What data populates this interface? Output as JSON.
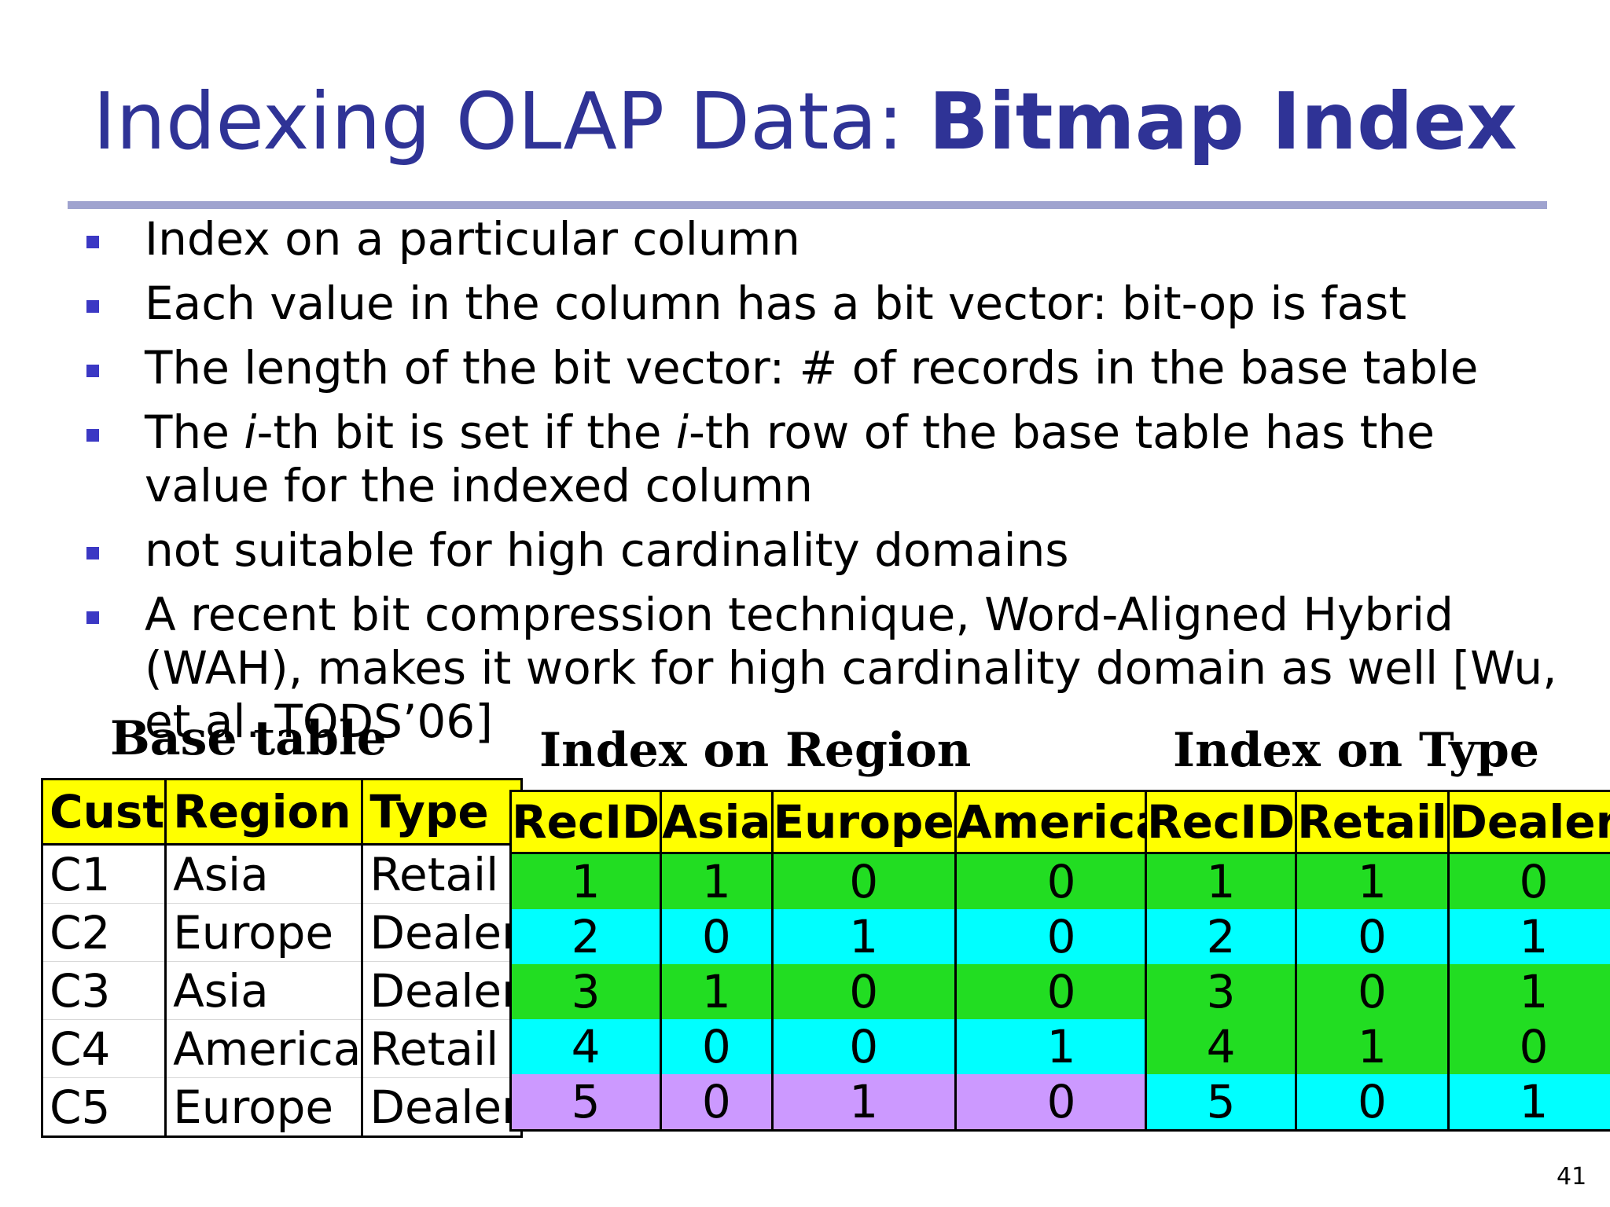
{
  "title": {
    "normal": "Indexing OLAP Data: ",
    "bold": "Bitmap Index"
  },
  "bullets": [
    {
      "text": "Index on a particular column"
    },
    {
      "text": "Each value in the column has a bit vector: bit-op is fast"
    },
    {
      "text": "The length of the bit vector: # of records in the base table"
    },
    {
      "a": "The ",
      "i1": "i",
      "b": "-th bit is set if the ",
      "i2": "i",
      "c": "-th row of the base table has the value for the indexed column"
    },
    {
      "text": "not suitable for high cardinality domains"
    },
    {
      "text": "A recent bit compression technique, Word-Aligned Hybrid (WAH), makes it work for high cardinality domain as well [Wu, et al. TODS’06]"
    }
  ],
  "base_table": {
    "caption": "Base table",
    "headers": [
      "Cust",
      "Region",
      "Type"
    ],
    "rows": [
      [
        "C1",
        "Asia",
        "Retail"
      ],
      [
        "C2",
        "Europe",
        "Dealer"
      ],
      [
        "C3",
        "Asia",
        "Dealer"
      ],
      [
        "C4",
        "America",
        "Retail"
      ],
      [
        "C5",
        "Europe",
        "Dealer"
      ]
    ]
  },
  "region_index": {
    "caption": "Index on Region",
    "headers": [
      "RecID",
      "Asia",
      "Europe",
      "America"
    ],
    "rows": [
      [
        "1",
        "1",
        "0",
        "0"
      ],
      [
        "2",
        "0",
        "1",
        "0"
      ],
      [
        "3",
        "1",
        "0",
        "0"
      ],
      [
        "4",
        "0",
        "0",
        "1"
      ],
      [
        "5",
        "0",
        "1",
        "0"
      ]
    ]
  },
  "type_index": {
    "caption": "Index on Type",
    "headers": [
      "RecID",
      "Retail",
      "Dealer"
    ],
    "rows": [
      [
        "1",
        "1",
        "0"
      ],
      [
        "2",
        "0",
        "1"
      ],
      [
        "3",
        "0",
        "1"
      ],
      [
        "4",
        "1",
        "0"
      ],
      [
        "5",
        "0",
        "1"
      ]
    ]
  },
  "page_number": "41",
  "colors": {
    "title": "#2f3396",
    "header_fill": "#ffff00",
    "row_green": "#22dd22",
    "row_cyan": "#00ffff",
    "row_purple": "#cc99ff",
    "bullet": "#3b38c4"
  }
}
